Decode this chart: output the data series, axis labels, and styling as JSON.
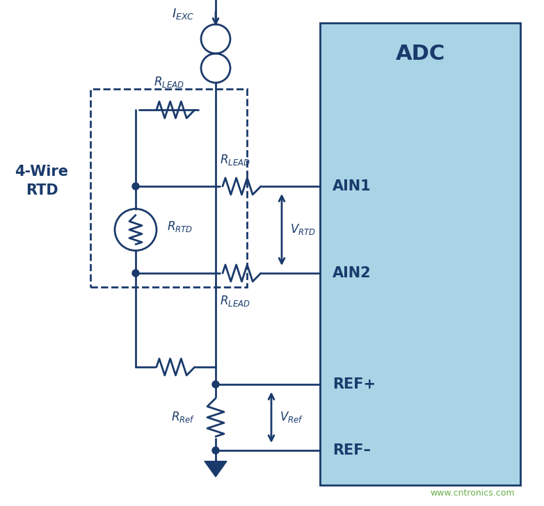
{
  "bg_color": "#ffffff",
  "dark_blue": "#1a3a6b",
  "adc_fill": "#a8d4e6",
  "adc_border": "#1a3a6b",
  "line_color": "#1a3a6b",
  "label_color": "#1a3a6b",
  "watermark_color": "#6ab04c",
  "title_4wire": "4-Wire\nRTD",
  "adc_label": "ADC",
  "ain1_label": "AIN1",
  "ain2_label": "AIN2",
  "refp_label": "REF+",
  "refm_label": "REF–",
  "watermark": "www.cntronics.com",
  "lw": 2.0
}
